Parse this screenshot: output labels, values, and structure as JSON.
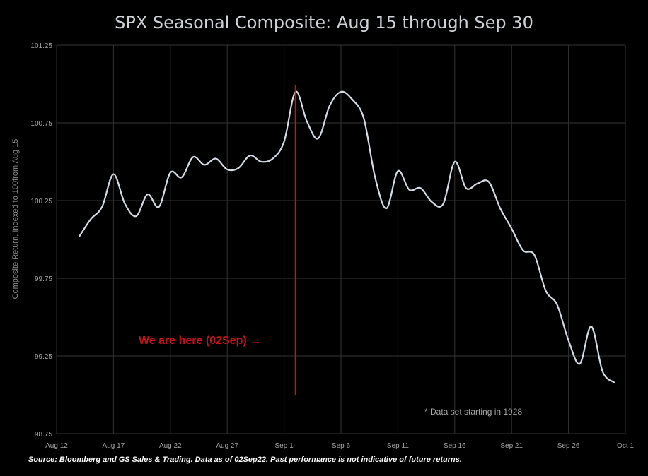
{
  "chart_data": {
    "type": "line",
    "title": "SPX Seasonal Composite: Aug 15 through Sep 30",
    "ylabel": "Composite Return,  Indexed to 100from Aug 15",
    "xlabel": "",
    "x_ticks": [
      "Aug 12",
      "Aug 17",
      "Aug 22",
      "Aug 27",
      "Sep 1",
      "Sep 6",
      "Sep 11",
      "Sep 16",
      "Sep 21",
      "Sep 26",
      "Oct 1"
    ],
    "y_ticks": [
      "98.75",
      "99.25",
      "99.75",
      "100.25",
      "100.75",
      "101.25"
    ],
    "ylim": [
      98.75,
      101.25
    ],
    "xlim": [
      "Aug 12",
      "Oct 1"
    ],
    "grid": true,
    "line_color": "#d6dce4",
    "marker_color": "#c0141b",
    "series": [
      {
        "x": [
          "Aug 14",
          "Aug 15",
          "Aug 16",
          "Aug 17",
          "Aug 18",
          "Aug 19",
          "Aug 20",
          "Aug 21",
          "Aug 22",
          "Aug 23",
          "Aug 24",
          "Aug 25",
          "Aug 26",
          "Aug 27",
          "Aug 28",
          "Aug 29",
          "Aug 30",
          "Aug 31",
          "Sep 1",
          "Sep 2",
          "Sep 3",
          "Sep 4",
          "Sep 5",
          "Sep 6",
          "Sep 7",
          "Sep 8",
          "Sep 9",
          "Sep 10",
          "Sep 11",
          "Sep 12",
          "Sep 13",
          "Sep 14",
          "Sep 15",
          "Sep 16",
          "Sep 17",
          "Sep 18",
          "Sep 19",
          "Sep 20",
          "Sep 21",
          "Sep 22",
          "Sep 23",
          "Sep 24",
          "Sep 25",
          "Sep 26",
          "Sep 27",
          "Sep 28",
          "Sep 29",
          "Sep 30"
        ],
        "values": [
          100.02,
          100.13,
          100.21,
          100.42,
          100.23,
          100.15,
          100.29,
          100.21,
          100.43,
          100.4,
          100.53,
          100.48,
          100.52,
          100.45,
          100.46,
          100.54,
          100.5,
          100.52,
          100.63,
          100.95,
          100.76,
          100.65,
          100.86,
          100.95,
          100.9,
          100.78,
          100.4,
          100.2,
          100.44,
          100.32,
          100.33,
          100.24,
          100.23,
          100.5,
          100.33,
          100.36,
          100.37,
          100.2,
          100.07,
          99.93,
          99.9,
          99.67,
          99.58,
          99.35,
          99.2,
          99.44,
          99.15,
          99.08
        ]
      }
    ],
    "marker": {
      "x": "Sep 2",
      "label": "We are here (02Sep) →"
    },
    "annotations": [
      "* Data set starting in 1928"
    ],
    "source": "Source: Bloomberg  and GS Sales & Trading.  Data as of 02Sep22.  Past performance  is not indicative  of future returns."
  }
}
